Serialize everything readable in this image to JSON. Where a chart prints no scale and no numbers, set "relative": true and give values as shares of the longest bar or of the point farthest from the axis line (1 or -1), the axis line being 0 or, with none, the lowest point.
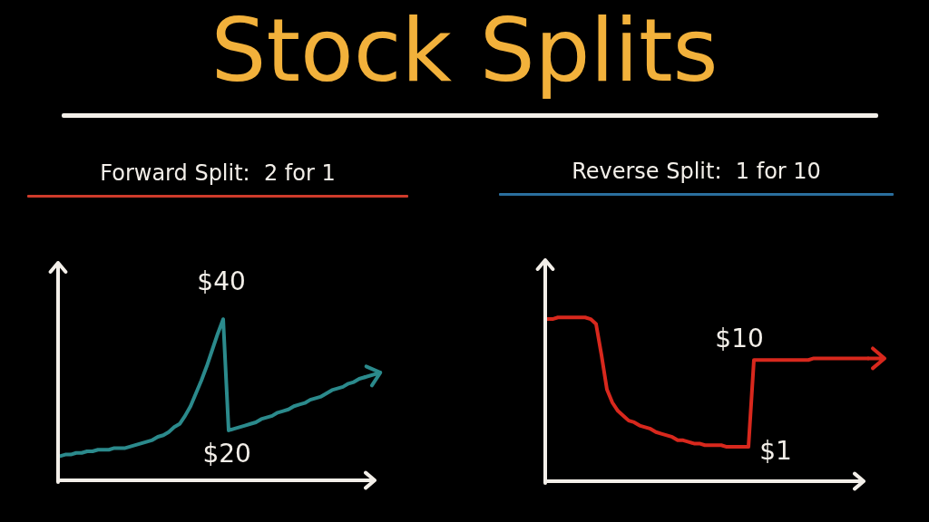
{
  "chart_data": [
    {
      "type": "other",
      "title": "Stock Splits"
    },
    {
      "type": "line",
      "title": "Forward Split:  2 for 1",
      "relative": true,
      "categories": [
        null,
        null,
        null,
        null,
        null,
        null,
        null,
        null,
        null,
        null,
        null,
        null,
        null,
        null,
        null,
        null,
        null,
        null,
        null,
        null,
        null,
        null,
        null,
        null,
        null,
        null,
        null,
        null,
        null,
        null,
        null,
        null,
        null,
        null,
        null,
        null,
        null,
        null,
        null,
        null,
        null,
        null,
        null,
        null,
        null,
        null,
        null,
        null,
        null,
        null,
        null,
        null,
        null,
        null,
        null,
        null,
        null
      ],
      "series": [
        {
          "color": "#2b8a8c",
          "values": [
            0.15,
            0.16,
            0.16,
            0.17,
            0.17,
            0.18,
            0.18,
            0.19,
            0.19,
            0.19,
            0.2,
            0.2,
            0.2,
            0.21,
            0.22,
            0.23,
            0.24,
            0.25,
            0.27,
            0.28,
            0.3,
            0.33,
            0.35,
            0.4,
            0.46,
            0.54,
            0.62,
            0.71,
            0.81,
            0.91,
            1.0,
            0.31,
            0.32,
            0.33,
            0.34,
            0.35,
            0.36,
            0.38,
            0.39,
            0.4,
            0.42,
            0.43,
            0.44,
            0.46,
            0.47,
            0.48,
            0.5,
            0.51,
            0.52,
            0.54,
            0.56,
            0.57,
            0.58,
            0.6,
            0.61,
            0.63,
            0.64
          ]
        }
      ],
      "annotations": [
        "$40",
        "$20"
      ]
    },
    {
      "type": "line",
      "title": "Reverse Split:  1 for 10",
      "relative": true,
      "categories": [
        null,
        null,
        null,
        null,
        null,
        null,
        null,
        null,
        null,
        null,
        null,
        null,
        null,
        null,
        null,
        null,
        null,
        null,
        null,
        null,
        null,
        null,
        null,
        null,
        null,
        null,
        null,
        null,
        null,
        null,
        null,
        null,
        null,
        null,
        null,
        null,
        null,
        null,
        null,
        null,
        null,
        null,
        null,
        null,
        null,
        null,
        null,
        null,
        null,
        null,
        null,
        null,
        null,
        null,
        null,
        null,
        null,
        null,
        null,
        null
      ],
      "series": [
        {
          "color": "#d8281d",
          "values": [
            0.99,
            0.99,
            1.0,
            1.0,
            1.0,
            1.0,
            1.0,
            1.0,
            0.99,
            0.96,
            0.77,
            0.56,
            0.48,
            0.43,
            0.4,
            0.37,
            0.36,
            0.34,
            0.33,
            0.32,
            0.3,
            0.29,
            0.28,
            0.27,
            0.25,
            0.25,
            0.24,
            0.23,
            0.23,
            0.22,
            0.22,
            0.22,
            0.22,
            0.21,
            0.21,
            0.21,
            0.21,
            0.21,
            0.74,
            0.74,
            0.74,
            0.74,
            0.74,
            0.74,
            0.74,
            0.74,
            0.74,
            0.74,
            0.74,
            0.75,
            0.75,
            0.75,
            0.75,
            0.75,
            0.75,
            0.75,
            0.75,
            0.75,
            0.75,
            0.75
          ]
        }
      ],
      "annotations": [
        "$10",
        "$1"
      ]
    }
  ]
}
